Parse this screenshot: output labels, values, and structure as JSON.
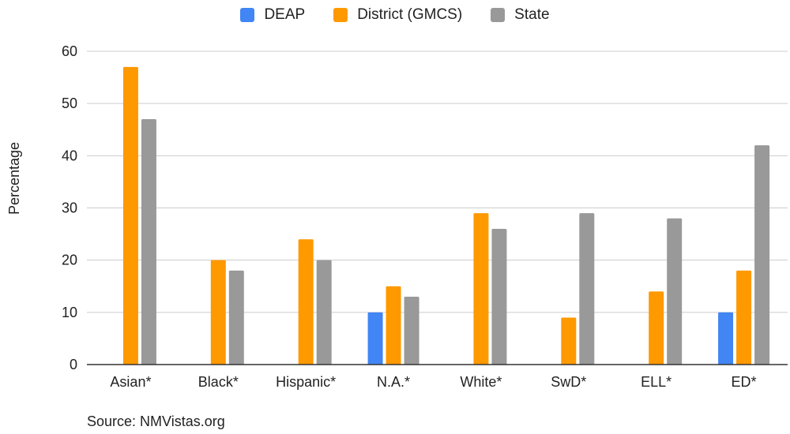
{
  "chart_data": {
    "type": "bar",
    "categories": [
      "Asian*",
      "Black*",
      "Hispanic*",
      "N.A.*",
      "White*",
      "SwD*",
      "ELL*",
      "ED*"
    ],
    "series": [
      {
        "name": "DEAP",
        "color": "#4285F4",
        "values": [
          0,
          0,
          0,
          10,
          0,
          0,
          0,
          10
        ]
      },
      {
        "name": "District (GMCS)",
        "color": "#FF9900",
        "values": [
          57,
          20,
          24,
          15,
          29,
          9,
          14,
          18
        ]
      },
      {
        "name": "State",
        "color": "#999999",
        "values": [
          47,
          18,
          20,
          13,
          26,
          29,
          28,
          42
        ]
      }
    ],
    "ylabel": "Percentage",
    "xlabel": "",
    "ylim": [
      0,
      60
    ],
    "yticks": [
      0,
      10,
      20,
      30,
      40,
      50,
      60
    ],
    "grid": true,
    "legend_position": "top"
  },
  "source_text": "Source: NMVistas.org"
}
